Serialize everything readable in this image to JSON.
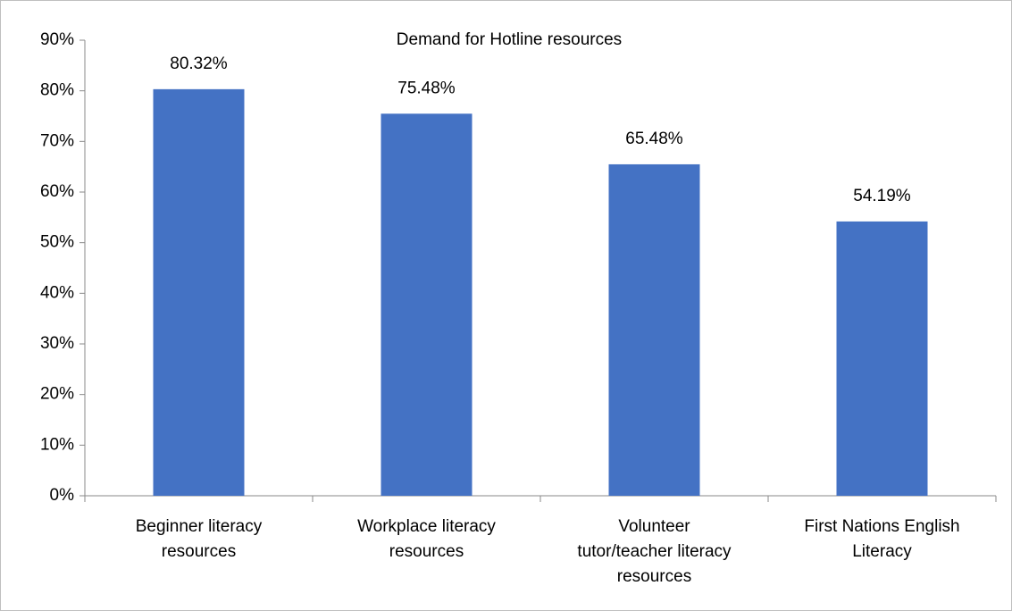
{
  "chart_data": {
    "type": "bar",
    "title": "Demand for Hotline resources",
    "categories": [
      "Beginner literacy resources",
      "Workplace literacy resources",
      "Volunteer tutor/teacher literacy resources",
      "First Nations English Literacy"
    ],
    "values": [
      80.32,
      75.48,
      65.48,
      54.19
    ],
    "value_labels": [
      "80.32%",
      "75.48%",
      "65.48%",
      "54.19%"
    ],
    "color": "#4472c4",
    "ylim": [
      0,
      90
    ],
    "yticks": [
      {
        "value": 0,
        "label": "0%"
      },
      {
        "value": 10,
        "label": "10%"
      },
      {
        "value": 20,
        "label": "20%"
      },
      {
        "value": 30,
        "label": "30%"
      },
      {
        "value": 40,
        "label": "40%"
      },
      {
        "value": 50,
        "label": "50%"
      },
      {
        "value": 60,
        "label": "60%"
      },
      {
        "value": 70,
        "label": "70%"
      },
      {
        "value": 80,
        "label": "80%"
      },
      {
        "value": 90,
        "label": "90%"
      }
    ],
    "grid": false
  }
}
